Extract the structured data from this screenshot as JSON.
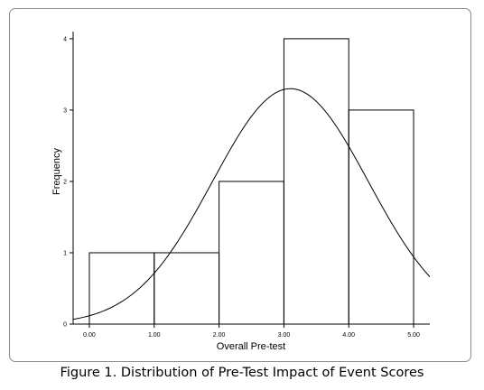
{
  "caption": "Figure 1. Distribution of Pre-Test Impact of Event Scores",
  "chart_data": {
    "type": "bar",
    "subtype": "histogram",
    "xlabel": "Overall Pre-test",
    "ylabel": "Frequency",
    "xlim": [
      -0.25,
      5.25
    ],
    "ylim": [
      0,
      4.1
    ],
    "x_ticks": [
      "0.00",
      "1.00",
      "2.00",
      "3.00",
      "4.00",
      "5.00"
    ],
    "y_ticks": [
      "0",
      "1",
      "2",
      "3",
      "4"
    ],
    "bins": [
      {
        "start": 0,
        "end": 1,
        "value": 1
      },
      {
        "start": 1,
        "end": 2,
        "value": 1
      },
      {
        "start": 2,
        "end": 3,
        "value": 2
      },
      {
        "start": 3,
        "end": 4,
        "value": 4
      },
      {
        "start": 4,
        "end": 5,
        "value": 3
      }
    ],
    "normal_curve": {
      "mean": 3.1,
      "sd": 1.2,
      "peak": 3.3
    },
    "grid": false
  }
}
